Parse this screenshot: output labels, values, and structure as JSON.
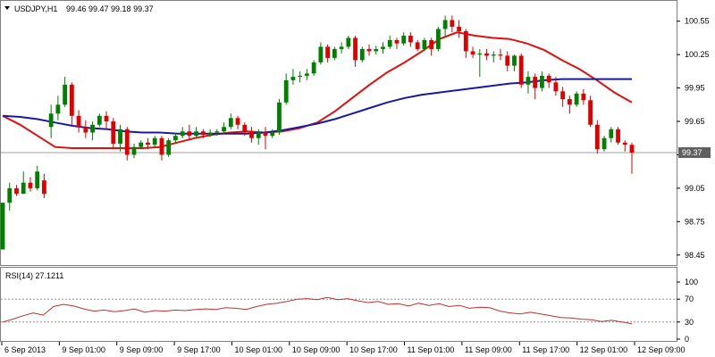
{
  "header": {
    "symbol": "USDJPY,H1",
    "ohlc": "99.46 99.47 99.18 99.37"
  },
  "rsi_panel": {
    "label": "RSI(14) 27.1211",
    "levels": [
      "100",
      "70",
      "30",
      "0"
    ]
  },
  "colors": {
    "bull": "#008000",
    "bear": "#e00000",
    "ma_fast": "#e01010",
    "ma_slow": "#1a1aa0",
    "rsi": "#c03030",
    "grid": "#a0a0a0",
    "price_label_bg": "#606060"
  },
  "chart_data": {
    "type": "candlestick",
    "symbol": "USDJPY",
    "timeframe": "H1",
    "y_ticks": [
      "100.55",
      "100.25",
      "99.95",
      "99.65",
      "99.35",
      "99.05",
      "98.75",
      "98.45"
    ],
    "ylim": [
      98.4,
      100.7
    ],
    "current_price": "99.37",
    "x_ticks": [
      "6 Sep 2013",
      "9 Sep 01:00",
      "9 Sep 09:00",
      "9 Sep 17:00",
      "10 Sep 01:00",
      "10 Sep 09:00",
      "10 Sep 17:00",
      "11 Sep 01:00",
      "11 Sep 09:00",
      "11 Sep 17:00",
      "12 Sep 01:00",
      "12 Sep 09:00"
    ],
    "candles": [
      [
        98.5,
        98.92,
        98.5,
        98.92
      ],
      [
        98.92,
        99.1,
        98.85,
        99.05
      ],
      [
        99.05,
        99.08,
        98.98,
        99.0
      ],
      [
        99.0,
        99.2,
        99.0,
        99.1
      ],
      [
        99.1,
        99.15,
        99.02,
        99.05
      ],
      [
        99.05,
        99.25,
        99.03,
        99.2
      ],
      [
        99.12,
        99.18,
        98.96,
        99.0
      ],
      [
        99.6,
        99.8,
        99.5,
        99.72
      ],
      [
        99.72,
        99.88,
        99.66,
        99.8
      ],
      [
        99.8,
        100.05,
        99.78,
        99.98
      ],
      [
        99.98,
        100.0,
        99.62,
        99.7
      ],
      [
        99.7,
        99.75,
        99.55,
        99.6
      ],
      [
        99.6,
        99.66,
        99.5,
        99.55
      ],
      [
        99.55,
        99.65,
        99.48,
        99.62
      ],
      [
        99.62,
        99.72,
        99.6,
        99.7
      ],
      [
        99.7,
        99.74,
        99.58,
        99.65
      ],
      [
        99.65,
        99.68,
        99.4,
        99.45
      ],
      [
        99.45,
        99.62,
        99.38,
        99.58
      ],
      [
        99.58,
        99.6,
        99.3,
        99.35
      ],
      [
        99.35,
        99.45,
        99.32,
        99.42
      ],
      [
        99.42,
        99.48,
        99.4,
        99.46
      ],
      [
        99.46,
        99.5,
        99.4,
        99.44
      ],
      [
        99.44,
        99.52,
        99.42,
        99.5
      ],
      [
        99.5,
        99.52,
        99.3,
        99.35
      ],
      [
        99.35,
        99.5,
        99.33,
        99.48
      ],
      [
        99.48,
        99.55,
        99.45,
        99.52
      ],
      [
        99.52,
        99.6,
        99.5,
        99.56
      ],
      [
        99.56,
        99.62,
        99.48,
        99.52
      ],
      [
        99.52,
        99.6,
        99.5,
        99.56
      ],
      [
        99.56,
        99.58,
        99.5,
        99.53
      ],
      [
        99.53,
        99.58,
        99.51,
        99.55
      ],
      [
        99.55,
        99.58,
        99.52,
        99.56
      ],
      [
        99.56,
        99.64,
        99.54,
        99.6
      ],
      [
        99.6,
        99.72,
        99.58,
        99.68
      ],
      [
        99.68,
        99.7,
        99.58,
        99.62
      ],
      [
        99.62,
        99.64,
        99.52,
        99.56
      ],
      [
        99.56,
        99.6,
        99.46,
        99.5
      ],
      [
        99.5,
        99.58,
        99.44,
        99.55
      ],
      [
        99.55,
        99.6,
        99.4,
        99.52
      ],
      [
        99.52,
        99.58,
        99.5,
        99.55
      ],
      [
        99.55,
        99.85,
        99.53,
        99.82
      ],
      [
        99.82,
        100.08,
        99.8,
        100.02
      ],
      [
        100.02,
        100.12,
        99.98,
        100.05
      ],
      [
        100.05,
        100.1,
        100.0,
        100.06
      ],
      [
        100.06,
        100.12,
        100.02,
        100.08
      ],
      [
        100.08,
        100.2,
        100.06,
        100.18
      ],
      [
        100.18,
        100.36,
        100.16,
        100.32
      ],
      [
        100.32,
        100.34,
        100.18,
        100.22
      ],
      [
        100.22,
        100.32,
        100.2,
        100.3
      ],
      [
        100.3,
        100.36,
        100.26,
        100.32
      ],
      [
        100.32,
        100.42,
        100.3,
        100.4
      ],
      [
        100.4,
        100.42,
        100.14,
        100.2
      ],
      [
        100.2,
        100.32,
        100.18,
        100.3
      ],
      [
        100.3,
        100.34,
        100.24,
        100.28
      ],
      [
        100.28,
        100.33,
        100.25,
        100.3
      ],
      [
        100.3,
        100.36,
        100.26,
        100.32
      ],
      [
        100.32,
        100.42,
        100.3,
        100.38
      ],
      [
        100.38,
        100.4,
        100.3,
        100.35
      ],
      [
        100.35,
        100.45,
        100.33,
        100.42
      ],
      [
        100.42,
        100.45,
        100.32,
        100.36
      ],
      [
        100.36,
        100.38,
        100.28,
        100.3
      ],
      [
        100.3,
        100.4,
        100.28,
        100.38
      ],
      [
        100.38,
        100.4,
        100.24,
        100.3
      ],
      [
        100.3,
        100.5,
        100.28,
        100.48
      ],
      [
        100.48,
        100.6,
        100.4,
        100.56
      ],
      [
        100.56,
        100.6,
        100.45,
        100.5
      ],
      [
        100.5,
        100.56,
        100.4,
        100.46
      ],
      [
        100.46,
        100.48,
        100.22,
        100.28
      ],
      [
        100.28,
        100.32,
        100.22,
        100.25
      ],
      [
        100.25,
        100.3,
        100.05,
        100.26
      ],
      [
        100.26,
        100.3,
        100.2,
        100.24
      ],
      [
        100.24,
        100.28,
        100.18,
        100.25
      ],
      [
        100.25,
        100.3,
        100.2,
        100.24
      ],
      [
        100.24,
        100.28,
        100.1,
        100.15
      ],
      [
        100.15,
        100.25,
        100.1,
        100.24
      ],
      [
        100.24,
        100.26,
        99.95,
        99.98
      ],
      [
        99.98,
        100.1,
        99.9,
        100.05
      ],
      [
        100.05,
        100.08,
        99.85,
        99.95
      ],
      [
        99.95,
        100.1,
        99.92,
        100.06
      ],
      [
        100.06,
        100.08,
        99.95,
        100.0
      ],
      [
        100.0,
        100.05,
        99.88,
        99.92
      ],
      [
        99.92,
        99.96,
        99.78,
        99.85
      ],
      [
        99.85,
        99.88,
        99.72,
        99.8
      ],
      [
        99.8,
        99.92,
        99.78,
        99.9
      ],
      [
        99.9,
        99.94,
        99.8,
        99.84
      ],
      [
        99.84,
        99.88,
        99.6,
        99.62
      ],
      [
        99.62,
        99.66,
        99.36,
        99.4
      ],
      [
        99.4,
        99.52,
        99.38,
        99.5
      ],
      [
        99.5,
        99.6,
        99.46,
        99.58
      ],
      [
        99.58,
        99.6,
        99.44,
        99.46
      ],
      [
        99.46,
        99.48,
        99.38,
        99.44
      ],
      [
        99.44,
        99.46,
        99.18,
        99.37
      ]
    ],
    "series": [
      {
        "values": [
          99.7,
          99.62,
          99.52,
          99.42,
          99.41,
          99.41,
          99.41,
          99.41,
          99.41,
          99.42,
          99.46,
          99.5,
          99.53,
          99.55,
          99.56,
          99.55,
          99.56,
          99.59,
          99.64,
          99.74,
          99.86,
          99.98,
          100.09,
          100.18,
          100.28,
          100.39,
          100.45,
          100.42,
          100.4,
          100.39,
          100.35,
          100.29,
          100.2,
          100.12,
          100.02,
          99.91,
          99.82
        ]
      },
      {
        "values": [
          99.7,
          99.69,
          99.67,
          99.64,
          99.61,
          99.59,
          99.58,
          99.56,
          99.55,
          99.55,
          99.54,
          99.54,
          99.54,
          99.54,
          99.54,
          99.55,
          99.57,
          99.6,
          99.63,
          99.67,
          99.72,
          99.77,
          99.82,
          99.86,
          99.89,
          99.91,
          99.93,
          99.95,
          99.97,
          99.99,
          100.0,
          100.02,
          100.03,
          100.03,
          100.03,
          100.03,
          100.03
        ]
      }
    ],
    "rsi": {
      "ylim": [
        0,
        100
      ],
      "levels": [
        70,
        30
      ],
      "values": [
        30,
        35,
        41,
        46,
        42,
        57,
        61,
        58,
        53,
        49,
        51,
        48,
        50,
        53,
        47,
        50,
        49,
        51,
        50,
        52,
        53,
        52,
        55,
        54,
        52,
        57,
        61,
        63,
        66,
        70,
        71,
        69,
        73,
        69,
        71,
        67,
        64,
        66,
        61,
        62,
        58,
        63,
        59,
        62,
        57,
        59,
        54,
        56,
        55,
        49,
        46,
        44,
        47,
        44,
        41,
        38,
        37,
        35,
        34,
        31,
        33,
        30,
        27
      ]
    }
  }
}
